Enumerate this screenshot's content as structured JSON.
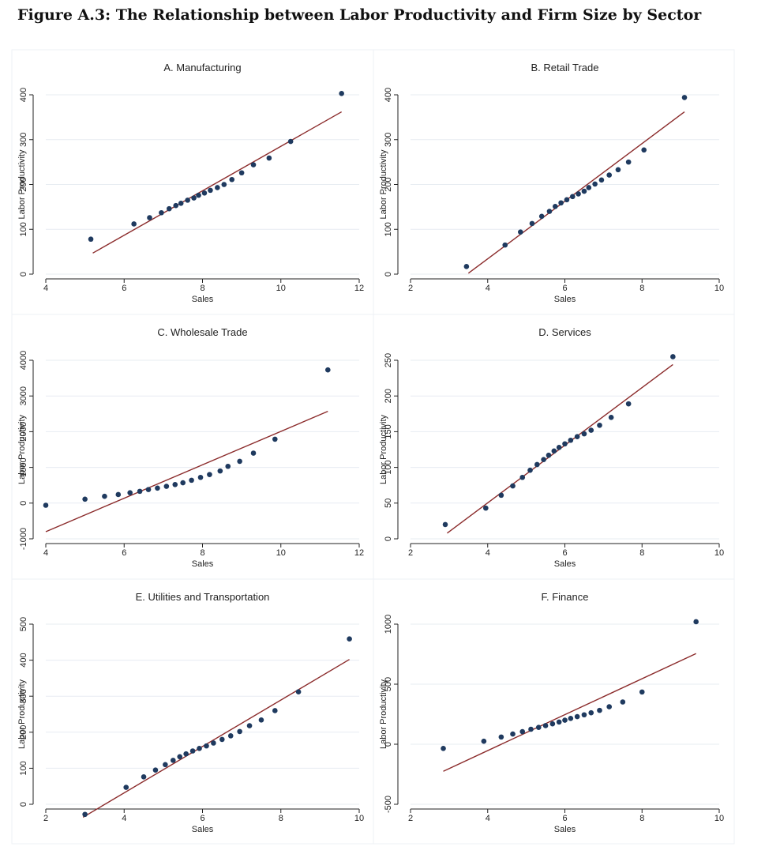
{
  "figure_title": "Figure A.3: The Relationship between Labor Productivity and Firm Size by Sector",
  "colors": {
    "background": "#ffffff",
    "gridline": "#e7ecf2",
    "axis": "#222222",
    "dot": "#1f3a5f",
    "fit_line": "#8b2b2b"
  },
  "chart_data": [
    {
      "type": "scatter",
      "title": "A. Manufacturing",
      "xlabel": "Sales",
      "ylabel": "Labor Productivity",
      "xlim": [
        4,
        12
      ],
      "xticks": [
        4,
        6,
        8,
        10,
        12
      ],
      "ylim": [
        0,
        400
      ],
      "yticks": [
        0,
        100,
        200,
        300,
        400
      ],
      "points": [
        [
          5.15,
          78
        ],
        [
          6.25,
          112
        ],
        [
          6.65,
          126
        ],
        [
          6.95,
          137
        ],
        [
          7.15,
          146
        ],
        [
          7.32,
          153
        ],
        [
          7.45,
          158
        ],
        [
          7.62,
          165
        ],
        [
          7.78,
          170
        ],
        [
          7.9,
          176
        ],
        [
          8.05,
          181
        ],
        [
          8.2,
          187
        ],
        [
          8.38,
          193
        ],
        [
          8.55,
          200
        ],
        [
          8.75,
          211
        ],
        [
          9.0,
          226
        ],
        [
          9.3,
          244
        ],
        [
          9.7,
          259
        ],
        [
          10.25,
          296
        ],
        [
          11.55,
          403
        ]
      ],
      "fit_line": [
        [
          5.2,
          47
        ],
        [
          11.55,
          362
        ]
      ]
    },
    {
      "type": "scatter",
      "title": "B. Retail Trade",
      "xlabel": "Sales",
      "ylabel": "Labor Productivity",
      "xlim": [
        2,
        10
      ],
      "xticks": [
        2,
        4,
        6,
        8,
        10
      ],
      "ylim": [
        0,
        400
      ],
      "yticks": [
        0,
        100,
        200,
        300,
        400
      ],
      "points": [
        [
          3.45,
          17
        ],
        [
          4.45,
          65
        ],
        [
          4.85,
          94
        ],
        [
          5.15,
          113
        ],
        [
          5.4,
          129
        ],
        [
          5.6,
          140
        ],
        [
          5.75,
          151
        ],
        [
          5.9,
          159
        ],
        [
          6.05,
          166
        ],
        [
          6.2,
          173
        ],
        [
          6.35,
          179
        ],
        [
          6.5,
          185
        ],
        [
          6.62,
          193
        ],
        [
          6.78,
          201
        ],
        [
          6.95,
          210
        ],
        [
          7.15,
          221
        ],
        [
          7.38,
          233
        ],
        [
          7.65,
          250
        ],
        [
          8.05,
          277
        ],
        [
          9.1,
          394
        ]
      ],
      "fit_line": [
        [
          3.5,
          2
        ],
        [
          9.1,
          362
        ]
      ]
    },
    {
      "type": "scatter",
      "title": "C. Wholesale Trade",
      "xlabel": "Sales",
      "ylabel": "Labor Productivity",
      "xlim": [
        4,
        12
      ],
      "xticks": [
        4,
        6,
        8,
        10,
        12
      ],
      "ylim": [
        -1000,
        4000
      ],
      "yticks": [
        -1000,
        0,
        1000,
        2000,
        3000,
        4000
      ],
      "points": [
        [
          4.0,
          -60
        ],
        [
          5.0,
          110
        ],
        [
          5.5,
          190
        ],
        [
          5.85,
          240
        ],
        [
          6.15,
          290
        ],
        [
          6.4,
          330
        ],
        [
          6.62,
          380
        ],
        [
          6.85,
          420
        ],
        [
          7.08,
          470
        ],
        [
          7.3,
          520
        ],
        [
          7.5,
          570
        ],
        [
          7.72,
          640
        ],
        [
          7.95,
          720
        ],
        [
          8.18,
          800
        ],
        [
          8.45,
          900
        ],
        [
          8.65,
          1030
        ],
        [
          8.95,
          1170
        ],
        [
          9.3,
          1400
        ],
        [
          9.85,
          1790
        ],
        [
          11.2,
          3730
        ]
      ],
      "fit_line": [
        [
          4.0,
          -800
        ],
        [
          11.2,
          2570
        ]
      ]
    },
    {
      "type": "scatter",
      "title": "D. Services",
      "xlabel": "Sales",
      "ylabel": "Labor Productivity",
      "xlim": [
        2,
        10
      ],
      "xticks": [
        2,
        4,
        6,
        8,
        10
      ],
      "ylim": [
        0,
        250
      ],
      "yticks": [
        0,
        50,
        100,
        150,
        200,
        250
      ],
      "points": [
        [
          2.9,
          20
        ],
        [
          3.95,
          43
        ],
        [
          4.35,
          61
        ],
        [
          4.65,
          74
        ],
        [
          4.9,
          86
        ],
        [
          5.1,
          96
        ],
        [
          5.28,
          104
        ],
        [
          5.45,
          111
        ],
        [
          5.58,
          117
        ],
        [
          5.72,
          123
        ],
        [
          5.85,
          128
        ],
        [
          6.0,
          133
        ],
        [
          6.15,
          138
        ],
        [
          6.32,
          143
        ],
        [
          6.5,
          147
        ],
        [
          6.68,
          152
        ],
        [
          6.9,
          159
        ],
        [
          7.2,
          170
        ],
        [
          7.65,
          189
        ],
        [
          8.8,
          255
        ]
      ],
      "fit_line": [
        [
          2.95,
          8
        ],
        [
          8.8,
          244
        ]
      ]
    },
    {
      "type": "scatter",
      "title": "E. Utilities and Transportation",
      "xlabel": "Sales",
      "ylabel": "Labor Productivity",
      "xlim": [
        2,
        10
      ],
      "xticks": [
        2,
        4,
        6,
        8,
        10
      ],
      "ylim": [
        0,
        500
      ],
      "yticks": [
        0,
        100,
        200,
        300,
        400,
        500
      ],
      "points": [
        [
          3.0,
          -28
        ],
        [
          4.05,
          47
        ],
        [
          4.5,
          76
        ],
        [
          4.8,
          95
        ],
        [
          5.05,
          110
        ],
        [
          5.25,
          122
        ],
        [
          5.42,
          132
        ],
        [
          5.58,
          140
        ],
        [
          5.75,
          148
        ],
        [
          5.92,
          155
        ],
        [
          6.1,
          162
        ],
        [
          6.28,
          170
        ],
        [
          6.5,
          180
        ],
        [
          6.72,
          190
        ],
        [
          6.95,
          202
        ],
        [
          7.2,
          218
        ],
        [
          7.5,
          234
        ],
        [
          7.85,
          260
        ],
        [
          8.45,
          312
        ],
        [
          9.75,
          459
        ]
      ],
      "fit_line": [
        [
          2.95,
          -36
        ],
        [
          9.75,
          402
        ]
      ]
    },
    {
      "type": "scatter",
      "title": "F. Finance",
      "xlabel": "Sales",
      "ylabel": "Labor Productivity",
      "xlim": [
        2,
        10
      ],
      "xticks": [
        2,
        4,
        6,
        8,
        10
      ],
      "ylim": [
        -500,
        1000
      ],
      "yticks": [
        -500,
        0,
        500,
        1000
      ],
      "points": [
        [
          2.85,
          -35
        ],
        [
          3.9,
          25
        ],
        [
          4.35,
          60
        ],
        [
          4.65,
          85
        ],
        [
          4.9,
          105
        ],
        [
          5.12,
          125
        ],
        [
          5.32,
          140
        ],
        [
          5.5,
          155
        ],
        [
          5.68,
          170
        ],
        [
          5.85,
          185
        ],
        [
          6.0,
          200
        ],
        [
          6.15,
          215
        ],
        [
          6.32,
          230
        ],
        [
          6.5,
          245
        ],
        [
          6.68,
          262
        ],
        [
          6.9,
          282
        ],
        [
          7.15,
          312
        ],
        [
          7.5,
          352
        ],
        [
          8.0,
          435
        ],
        [
          9.4,
          1020
        ]
      ],
      "fit_line": [
        [
          2.85,
          -225
        ],
        [
          9.4,
          755
        ]
      ]
    }
  ]
}
